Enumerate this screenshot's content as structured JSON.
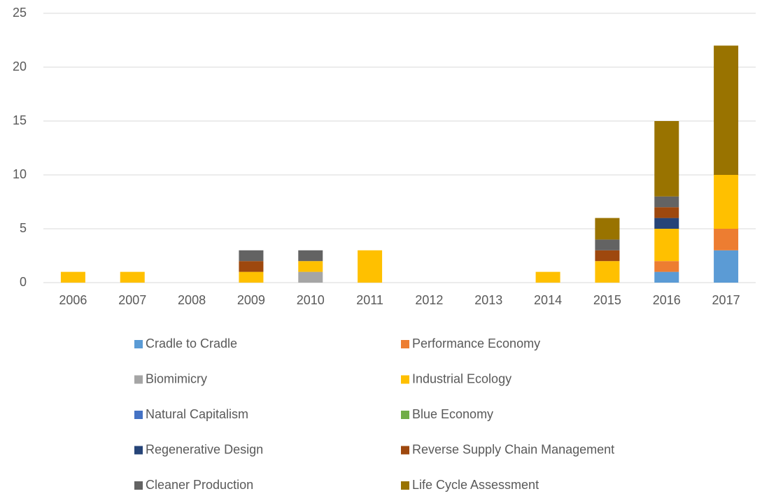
{
  "chart_data": {
    "type": "stacked-bar",
    "categories": [
      "2006",
      "2007",
      "2008",
      "2009",
      "2010",
      "2011",
      "2012",
      "2013",
      "2014",
      "2015",
      "2016",
      "2017"
    ],
    "series": [
      {
        "name": "Cradle to Cradle",
        "color": "#5b9bd5",
        "values": [
          0,
          0,
          0,
          0,
          0,
          0,
          0,
          0,
          0,
          0,
          1,
          3
        ]
      },
      {
        "name": "Performance Economy",
        "color": "#ed7d31",
        "values": [
          0,
          0,
          0,
          0,
          0,
          0,
          0,
          0,
          0,
          0,
          1,
          2
        ]
      },
      {
        "name": "Biomimicry",
        "color": "#a5a5a5",
        "values": [
          0,
          0,
          0,
          0,
          1,
          0,
          0,
          0,
          0,
          0,
          0,
          0
        ]
      },
      {
        "name": "Industrial Ecology",
        "color": "#ffc000",
        "values": [
          1,
          1,
          0,
          1,
          1,
          3,
          0,
          0,
          1,
          2,
          3,
          5
        ]
      },
      {
        "name": "Natural Capitalism",
        "color": "#4472c4",
        "values": [
          0,
          0,
          0,
          0,
          0,
          0,
          0,
          0,
          0,
          0,
          0,
          0
        ]
      },
      {
        "name": "Blue Economy",
        "color": "#70ad47",
        "values": [
          0,
          0,
          0,
          0,
          0,
          0,
          0,
          0,
          0,
          0,
          0,
          0
        ]
      },
      {
        "name": "Regenerative Design",
        "color": "#264478",
        "values": [
          0,
          0,
          0,
          0,
          0,
          0,
          0,
          0,
          0,
          0,
          1,
          0
        ]
      },
      {
        "name": "Reverse Supply Chain Management",
        "color": "#9e480e",
        "values": [
          0,
          0,
          0,
          1,
          0,
          0,
          0,
          0,
          0,
          1,
          1,
          0
        ]
      },
      {
        "name": "Cleaner Production",
        "color": "#636363",
        "values": [
          0,
          0,
          0,
          1,
          1,
          0,
          0,
          0,
          0,
          1,
          1,
          0
        ]
      },
      {
        "name": "Life Cycle Assessment",
        "color": "#997300",
        "values": [
          0,
          0,
          0,
          0,
          0,
          0,
          0,
          0,
          0,
          2,
          7,
          12
        ]
      }
    ],
    "ylim": [
      0,
      25
    ],
    "yticks": [
      0,
      5,
      10,
      15,
      20,
      25
    ],
    "grid": true,
    "legend": "bottom"
  }
}
